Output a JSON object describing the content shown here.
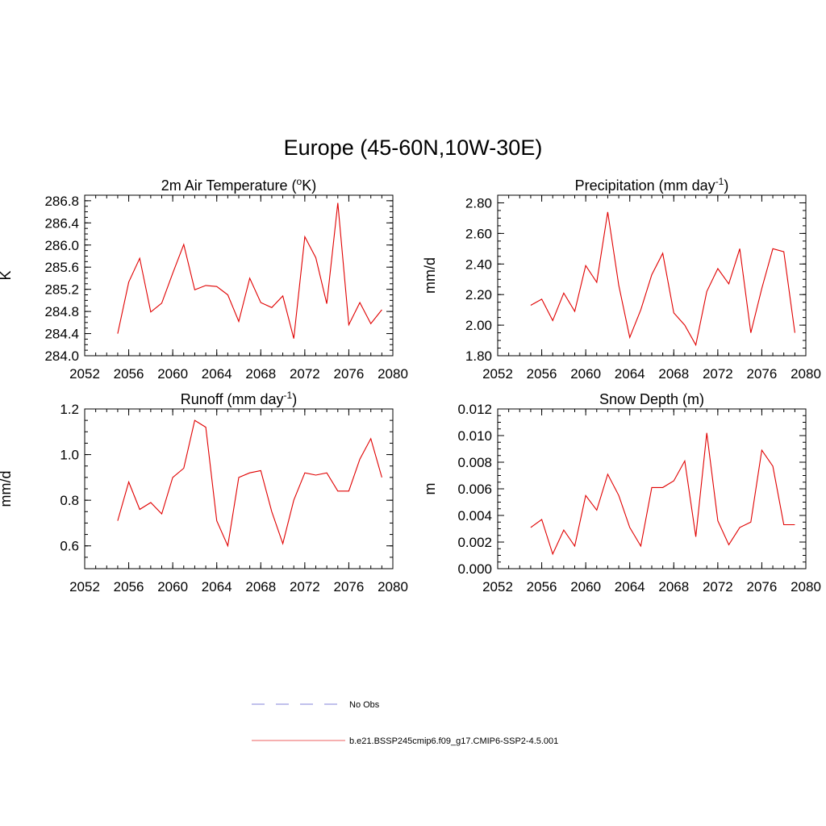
{
  "title": "Europe (45-60N,10W-30E)",
  "colors": {
    "model": "#e00000",
    "obs": "#9a9ae0",
    "axis": "#000000"
  },
  "chart_data": [
    {
      "type": "line",
      "title": "2m Air Temperature (",
      "title_sup": "o",
      "title_after": "K)",
      "ylabel": "K",
      "xlim": [
        2052,
        2080
      ],
      "ylim": [
        284.0,
        286.9
      ],
      "xticks": [
        "2052",
        "2056",
        "2060",
        "2064",
        "2068",
        "2072",
        "2076",
        "2080"
      ],
      "yticks": [
        "284.0",
        "284.4",
        "284.8",
        "285.2",
        "285.6",
        "286.0",
        "286.4",
        "286.8"
      ],
      "x": [
        2055,
        2056,
        2057,
        2058,
        2059,
        2060,
        2061,
        2062,
        2063,
        2064,
        2065,
        2066,
        2067,
        2068,
        2069,
        2070,
        2071,
        2072,
        2073,
        2074,
        2075,
        2076,
        2077,
        2078,
        2079
      ],
      "values": [
        284.4,
        285.33,
        285.76,
        284.79,
        284.95,
        285.49,
        286.01,
        285.19,
        285.27,
        285.25,
        285.1,
        284.62,
        285.4,
        284.96,
        284.87,
        285.08,
        284.31,
        286.15,
        285.77,
        284.94,
        286.76,
        284.56,
        284.96,
        284.58,
        284.83
      ]
    },
    {
      "type": "line",
      "title": "Precipitation (mm day",
      "title_sup": "-1",
      "title_after": ")",
      "ylabel": "mm/d",
      "xlim": [
        2052,
        2080
      ],
      "ylim": [
        1.8,
        2.85
      ],
      "xticks": [
        "2052",
        "2056",
        "2060",
        "2064",
        "2068",
        "2072",
        "2076",
        "2080"
      ],
      "yticks": [
        "1.80",
        "2.00",
        "2.20",
        "2.40",
        "2.60",
        "2.80"
      ],
      "x": [
        2055,
        2056,
        2057,
        2058,
        2059,
        2060,
        2061,
        2062,
        2063,
        2064,
        2065,
        2066,
        2067,
        2068,
        2069,
        2070,
        2071,
        2072,
        2073,
        2074,
        2075,
        2076,
        2077,
        2078,
        2079
      ],
      "values": [
        2.13,
        2.17,
        2.03,
        2.21,
        2.09,
        2.39,
        2.28,
        2.74,
        2.26,
        1.92,
        2.1,
        2.33,
        2.47,
        2.08,
        2.0,
        1.87,
        2.22,
        2.37,
        2.27,
        2.5,
        1.95,
        2.24,
        2.5,
        2.48,
        1.95
      ]
    },
    {
      "type": "line",
      "title": "Runoff (mm day",
      "title_sup": "-1",
      "title_after": ")",
      "ylabel": "mm/d",
      "xlim": [
        2052,
        2080
      ],
      "ylim": [
        0.5,
        1.2
      ],
      "xticks": [
        "2052",
        "2056",
        "2060",
        "2064",
        "2068",
        "2072",
        "2076",
        "2080"
      ],
      "yticks": [
        "0.6",
        "0.8",
        "1.0",
        "1.2"
      ],
      "x": [
        2055,
        2056,
        2057,
        2058,
        2059,
        2060,
        2061,
        2062,
        2063,
        2064,
        2065,
        2066,
        2067,
        2068,
        2069,
        2070,
        2071,
        2072,
        2073,
        2074,
        2075,
        2076,
        2077,
        2078,
        2079
      ],
      "values": [
        0.71,
        0.88,
        0.76,
        0.79,
        0.74,
        0.9,
        0.94,
        1.15,
        1.12,
        0.71,
        0.6,
        0.9,
        0.92,
        0.93,
        0.75,
        0.61,
        0.8,
        0.92,
        0.91,
        0.92,
        0.84,
        0.84,
        0.98,
        1.07,
        0.9
      ]
    },
    {
      "type": "line",
      "title": "Snow Depth (m)",
      "title_sup": "",
      "title_after": "",
      "ylabel": "m",
      "xlim": [
        2052,
        2080
      ],
      "ylim": [
        0.0,
        0.012
      ],
      "xticks": [
        "2052",
        "2056",
        "2060",
        "2064",
        "2068",
        "2072",
        "2076",
        "2080"
      ],
      "yticks": [
        "0.000",
        "0.002",
        "0.004",
        "0.006",
        "0.008",
        "0.010",
        "0.012"
      ],
      "x": [
        2055,
        2056,
        2057,
        2058,
        2059,
        2060,
        2061,
        2062,
        2063,
        2064,
        2065,
        2066,
        2067,
        2068,
        2069,
        2070,
        2071,
        2072,
        2073,
        2074,
        2075,
        2076,
        2077,
        2078,
        2079
      ],
      "values": [
        0.0031,
        0.0037,
        0.0011,
        0.0029,
        0.0017,
        0.0055,
        0.0044,
        0.0071,
        0.0055,
        0.0031,
        0.0017,
        0.0061,
        0.0061,
        0.0066,
        0.0081,
        0.0024,
        0.0102,
        0.0036,
        0.0018,
        0.0031,
        0.0035,
        0.0089,
        0.0077,
        0.0033,
        0.0033
      ]
    }
  ],
  "legend": [
    {
      "label": "No Obs",
      "style": "dashed",
      "color": "#9a9ae0"
    },
    {
      "label": "b.e21.BSSP245cmip6.f09_g17.CMIP6-SSP2-4.5.001",
      "style": "solid",
      "color": "#f08080"
    }
  ]
}
